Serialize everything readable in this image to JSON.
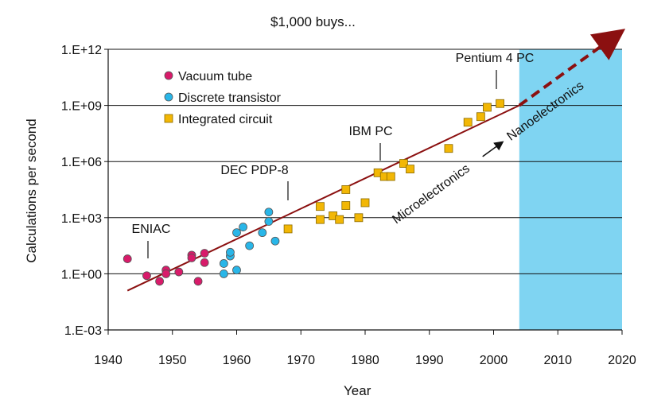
{
  "chart_data": {
    "type": "scatter",
    "title": "$1,000 buys...",
    "xlabel": "Year",
    "ylabel": "Calculations per second",
    "xlim": [
      1940,
      2020
    ],
    "ylim_log10": [
      -3,
      12
    ],
    "x_ticks": [
      1940,
      1950,
      1960,
      1970,
      1980,
      1990,
      2000,
      2010,
      2020
    ],
    "x_tick_labels": [
      "1940",
      "1950",
      "1960",
      "1970",
      "1980",
      "1990",
      "2000",
      "2010",
      "2020"
    ],
    "y_ticks_log10": [
      -3,
      0,
      3,
      6,
      9,
      12
    ],
    "y_tick_labels": [
      "1.E-03",
      "1.E+00",
      "1.E+03",
      "1.E+06",
      "1.E+09",
      "1.E+12"
    ],
    "grid": "horizontal",
    "legend_position": "top-left",
    "series": [
      {
        "name": "Vacuum tube",
        "color": "#d81b6a",
        "marker": "circle",
        "points_log10": [
          [
            1943,
            0.8
          ],
          [
            1946,
            -0.1
          ],
          [
            1948,
            -0.4
          ],
          [
            1949,
            0.2
          ],
          [
            1949,
            0.0
          ],
          [
            1951,
            0.1
          ],
          [
            1953,
            1.0
          ],
          [
            1953,
            0.85
          ],
          [
            1954,
            -0.4
          ],
          [
            1955,
            1.1
          ],
          [
            1955,
            0.6
          ]
        ]
      },
      {
        "name": "Discrete transistor",
        "color": "#29b6e8",
        "marker": "circle",
        "points_log10": [
          [
            1958,
            0.0
          ],
          [
            1958,
            0.55
          ],
          [
            1959,
            0.95
          ],
          [
            1959,
            1.15
          ],
          [
            1960,
            0.2
          ],
          [
            1960,
            2.2
          ],
          [
            1961,
            2.5
          ],
          [
            1962,
            1.5
          ],
          [
            1964,
            2.2
          ],
          [
            1965,
            3.3
          ],
          [
            1965,
            2.8
          ],
          [
            1966,
            1.75
          ]
        ]
      },
      {
        "name": "Integrated circuit",
        "color": "#f2b705",
        "marker": "square",
        "points_log10": [
          [
            1968,
            2.4
          ],
          [
            1973,
            3.6
          ],
          [
            1973,
            2.9
          ],
          [
            1975,
            3.1
          ],
          [
            1976,
            2.9
          ],
          [
            1977,
            3.65
          ],
          [
            1977,
            4.5
          ],
          [
            1979,
            3.0
          ],
          [
            1980,
            3.8
          ],
          [
            1982,
            5.4
          ],
          [
            1983,
            5.2
          ],
          [
            1984,
            5.2
          ],
          [
            1986,
            5.9
          ],
          [
            1987,
            5.6
          ],
          [
            1993,
            6.7
          ],
          [
            1996,
            8.1
          ],
          [
            1998,
            8.4
          ],
          [
            1999,
            8.9
          ],
          [
            2001,
            9.1
          ]
        ]
      }
    ],
    "trend_line": {
      "from_log10": [
        1943,
        -0.9
      ],
      "solid_to_log10": [
        2004,
        9.0
      ],
      "dashed_to_log10": [
        2020,
        13.0
      ],
      "color": "#8b1010"
    },
    "shaded_region": {
      "x_from": 2004,
      "x_to": 2020,
      "color": "#7fd4f2"
    },
    "annotations": [
      {
        "text": "ENIAC",
        "x": 1946
      },
      {
        "text": "DEC PDP-8",
        "x": 1968
      },
      {
        "text": "IBM PC",
        "x": 1982
      },
      {
        "text": "Pentium 4 PC",
        "x": 2000
      }
    ],
    "transition_label": {
      "from": "Microelectronics",
      "to": "Nanoelectronics"
    }
  }
}
